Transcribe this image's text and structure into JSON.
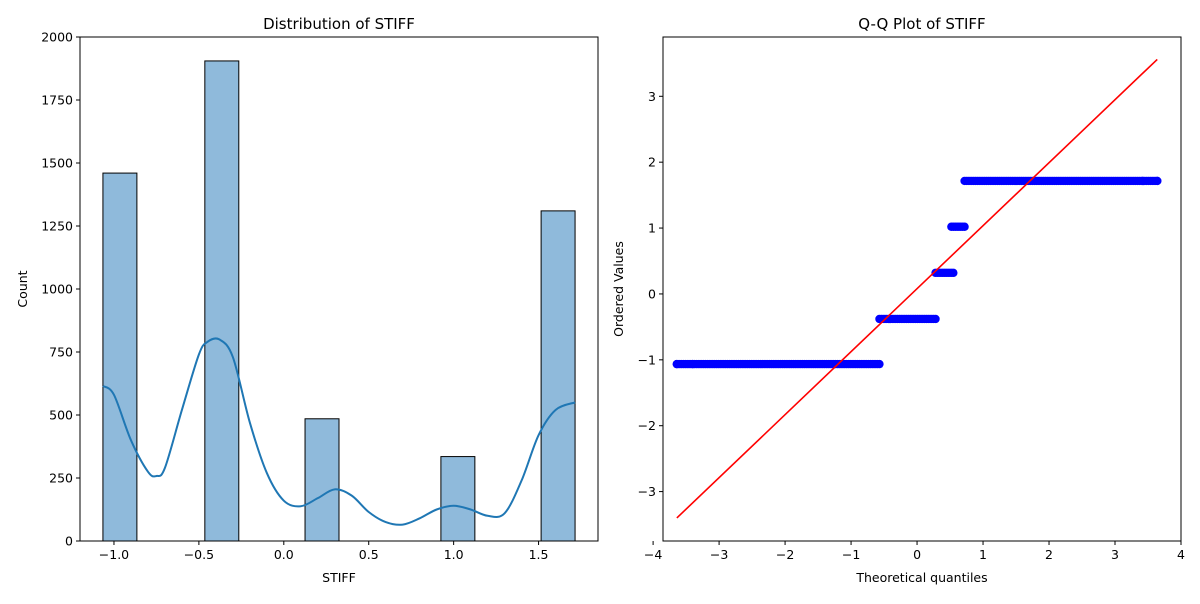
{
  "colors": {
    "bar_fill": "#8fbadb",
    "bar_edge": "#000000",
    "kde_line": "#1f77b4",
    "qq_points": "#0000ff",
    "qq_line": "#ff0000"
  },
  "chart_data": [
    {
      "type": "bar",
      "title": "Distribution of STIFF",
      "xlabel": "STIFF",
      "ylabel": "Count",
      "xlim": [
        -1.2,
        1.85
      ],
      "ylim": [
        0,
        2000
      ],
      "xticks": [
        -1.0,
        -0.5,
        0.0,
        0.5,
        1.0,
        1.5
      ],
      "xtick_labels": [
        "−1.0",
        "−0.5",
        "0.0",
        "0.5",
        "1.0",
        "1.5"
      ],
      "yticks": [
        0,
        250,
        500,
        750,
        1000,
        1250,
        1500,
        1750,
        2000
      ],
      "ytick_labels": [
        "0",
        "250",
        "500",
        "750",
        "1000",
        "1250",
        "1500",
        "1750",
        "2000"
      ],
      "bars": [
        {
          "x0": -1.065,
          "x1": -0.865,
          "value": 1460
        },
        {
          "x0": -0.465,
          "x1": -0.265,
          "value": 1905
        },
        {
          "x0": 0.125,
          "x1": 0.325,
          "value": 485
        },
        {
          "x0": 0.925,
          "x1": 1.125,
          "value": 335
        },
        {
          "x0": 1.515,
          "x1": 1.715,
          "value": 1310
        }
      ],
      "kde": {
        "x": [
          -1.065,
          -1.0,
          -0.9,
          -0.8,
          -0.75,
          -0.7,
          -0.6,
          -0.5,
          -0.45,
          -0.38,
          -0.3,
          -0.2,
          -0.1,
          0.0,
          0.1,
          0.2,
          0.3,
          0.4,
          0.5,
          0.6,
          0.7,
          0.8,
          0.9,
          1.0,
          1.1,
          1.2,
          1.3,
          1.4,
          1.5,
          1.6,
          1.715
        ],
        "y": [
          615,
          580,
          400,
          275,
          258,
          290,
          520,
          740,
          790,
          800,
          730,
          470,
          270,
          160,
          138,
          170,
          205,
          180,
          115,
          75,
          65,
          90,
          125,
          140,
          125,
          100,
          110,
          240,
          420,
          520,
          550
        ]
      }
    },
    {
      "type": "scatter",
      "title": "Q-Q Plot of STIFF",
      "xlabel": "Theoretical quantiles",
      "ylabel": "Ordered Values",
      "xlim": [
        -3.85,
        4.0
      ],
      "ylim": [
        -3.75,
        3.9
      ],
      "xticks": [
        -4,
        -3,
        -2,
        -1,
        0,
        1,
        2,
        3,
        4
      ],
      "xtick_labels": [
        "−4",
        "−3",
        "−2",
        "−1",
        "0",
        "1",
        "2",
        "3",
        "4"
      ],
      "yticks": [
        -3,
        -2,
        -1,
        0,
        1,
        2,
        3
      ],
      "ytick_labels": [
        "−3",
        "−2",
        "−1",
        "0",
        "1",
        "2",
        "3"
      ],
      "steps": [
        {
          "y": -1.065,
          "x_from": -3.64,
          "x_to": -0.57
        },
        {
          "y": -0.38,
          "x_from": -0.57,
          "x_to": 0.28
        },
        {
          "y": 0.32,
          "x_from": 0.28,
          "x_to": 0.55
        },
        {
          "y": 1.02,
          "x_from": 0.52,
          "x_to": 0.72
        },
        {
          "y": 1.715,
          "x_from": 0.72,
          "x_to": 3.64
        }
      ],
      "fit_line": {
        "x": [
          -3.64,
          3.64
        ],
        "y": [
          -3.4,
          3.56
        ]
      }
    }
  ]
}
